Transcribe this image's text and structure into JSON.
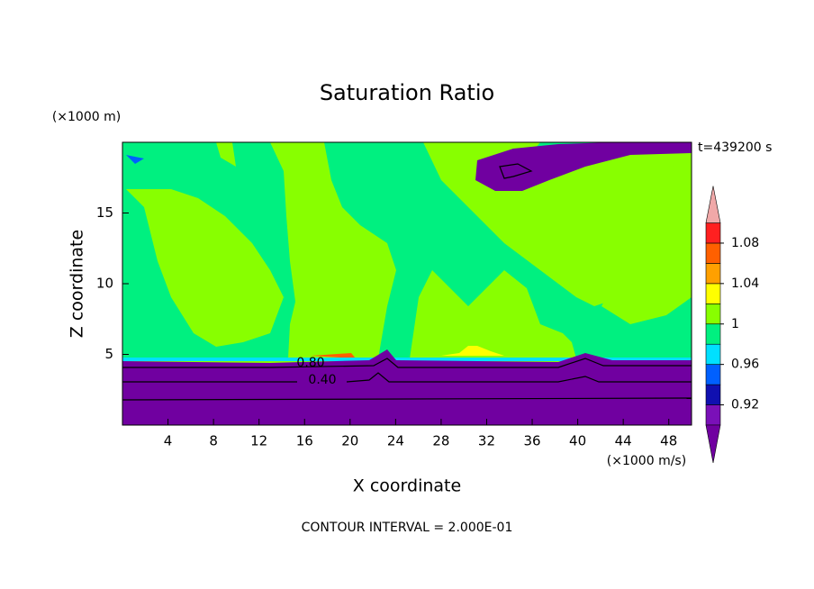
{
  "chart_data": {
    "type": "contour",
    "title": "Saturation Ratio",
    "x_label": "X coordinate",
    "y_label": "Z coordinate",
    "x_unit": "(×1000 m/s)",
    "y_unit": "(×1000 m)",
    "time_label": "t=439200 s",
    "footer": "CONTOUR INTERVAL = 2.000E-01",
    "xlim": [
      0,
      50
    ],
    "xticks": [
      4,
      8,
      12,
      16,
      20,
      24,
      28,
      32,
      36,
      40,
      44,
      48
    ],
    "ylim": [
      0,
      20
    ],
    "yticks": [
      5,
      10,
      15
    ],
    "contour_labels": [
      {
        "value": 0.8,
        "label": "0.80"
      },
      {
        "value": 0.4,
        "label": "0.40"
      }
    ],
    "colorbar": {
      "levels": [
        0.9,
        0.92,
        0.94,
        0.96,
        0.98,
        1,
        1.02,
        1.04,
        1.06,
        1.08,
        1.1
      ],
      "colors": [
        "#7000a0",
        "#7a10b8",
        "#1010b0",
        "#0060ff",
        "#00e0ff",
        "#00f080",
        "#88ff00",
        "#ffff00",
        "#ffa000",
        "#ff6000",
        "#ff2020",
        "#f0a8a8"
      ],
      "ticks": [
        0.92,
        0.96,
        1,
        1.04,
        1.08
      ]
    }
  }
}
